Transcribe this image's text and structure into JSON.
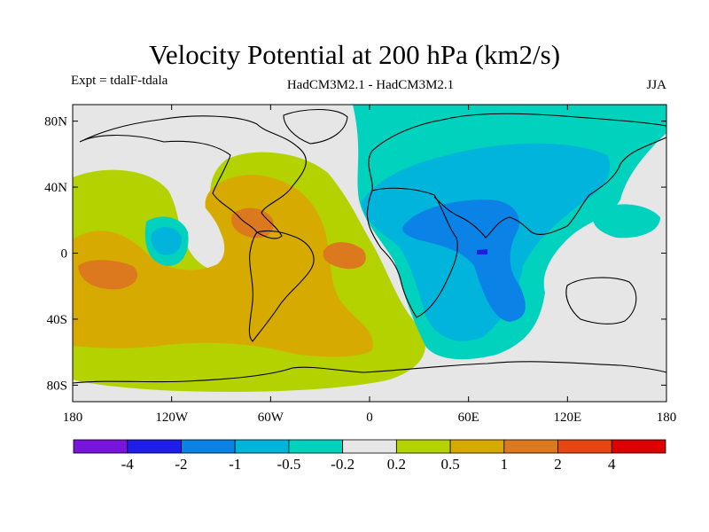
{
  "title": "Velocity Potential at 200 hPa (km2/s)",
  "subtitle_left": "Expt = tdalF-tdala",
  "subtitle_center": "HadCM3M2.1 - HadCM3M2.1",
  "subtitle_right": "JJA",
  "map": {
    "variable": "velocity potential anomaly",
    "level_hPa": 200,
    "units": "km2/s",
    "projection": "cylindrical equidistant",
    "lon_range": [
      -180,
      180
    ],
    "lat_range": [
      -90,
      90
    ],
    "lat_ticks": [
      {
        "value": 80,
        "label": "80N"
      },
      {
        "value": 40,
        "label": "40N"
      },
      {
        "value": 0,
        "label": "0"
      },
      {
        "value": -40,
        "label": "40S"
      },
      {
        "value": -80,
        "label": "80S"
      }
    ],
    "lon_ticks": [
      {
        "value": -180,
        "label": "180"
      },
      {
        "value": -120,
        "label": "120W"
      },
      {
        "value": -60,
        "label": "60W"
      },
      {
        "value": 0,
        "label": "0"
      },
      {
        "value": 60,
        "label": "60E"
      },
      {
        "value": 120,
        "label": "120E"
      },
      {
        "value": 180,
        "label": "180"
      }
    ],
    "colors": {
      "neutral": "#e6e6e6",
      "neg_0_2": "#00d2be",
      "neg_0_5": "#00b4dc",
      "neg_1": "#0a82e6",
      "neg_2": "#1e1ee6",
      "pos_0_2": "#b4d200",
      "pos_0_5": "#d7aa00",
      "pos_1": "#dc781e"
    }
  },
  "colorbar": {
    "colors": [
      "#7814dc",
      "#1e1ee6",
      "#0a82e6",
      "#00b4dc",
      "#00d2be",
      "#e6e6e6",
      "#b4d200",
      "#d7aa00",
      "#dc781e",
      "#e64614",
      "#dc0000"
    ],
    "labels": [
      "-4",
      "-2",
      "-1",
      "-0.5",
      "-0.2",
      "0.2",
      "0.5",
      "1",
      "2",
      "4"
    ]
  }
}
